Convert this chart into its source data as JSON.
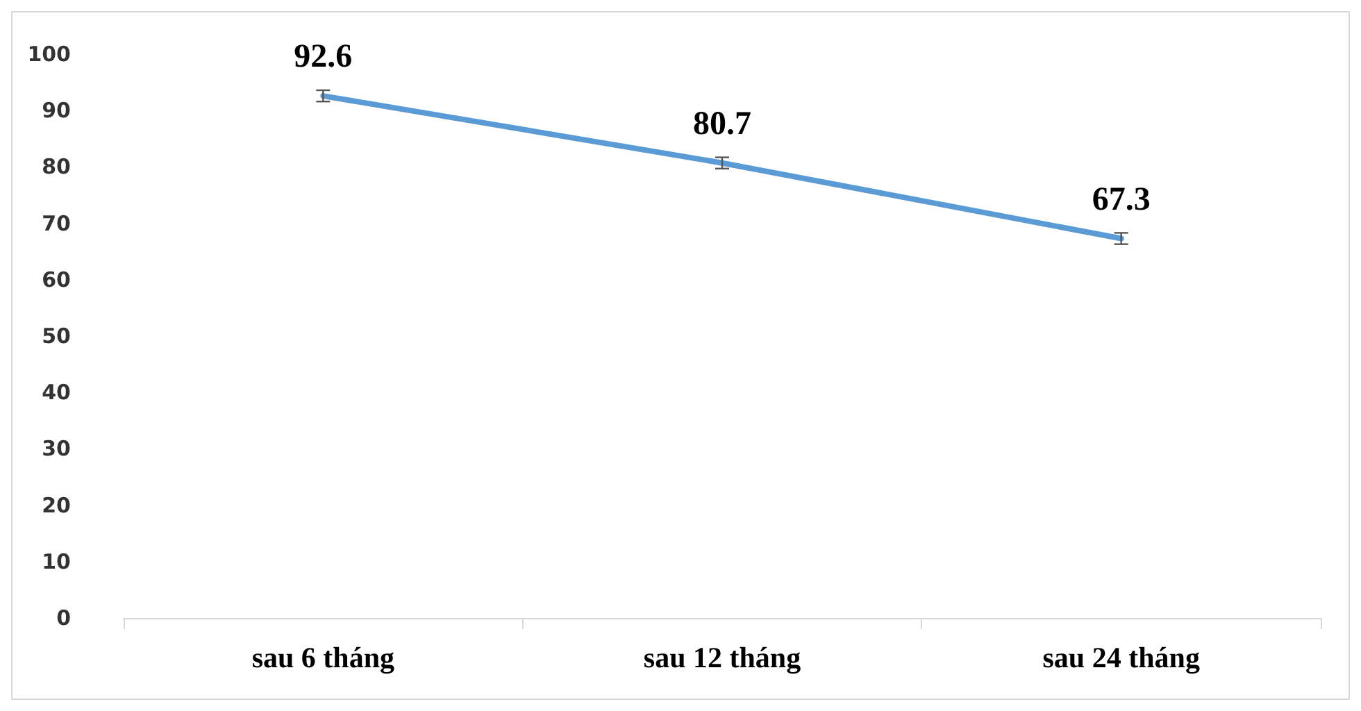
{
  "chart_data": {
    "type": "line",
    "categories": [
      "sau 6 tháng",
      "sau 12 tháng",
      "sau 24 tháng"
    ],
    "series": [
      {
        "color": "#5b9bd5",
        "values": [
          92.6,
          80.7,
          67.3
        ],
        "errors": [
          1,
          1,
          1
        ]
      }
    ],
    "ylim": [
      0,
      100
    ],
    "yticks": [
      0,
      10,
      20,
      30,
      40,
      50,
      60,
      70,
      80,
      90,
      100
    ],
    "grid": false,
    "data_labels": true,
    "marker": "none",
    "line_style": "solid"
  }
}
